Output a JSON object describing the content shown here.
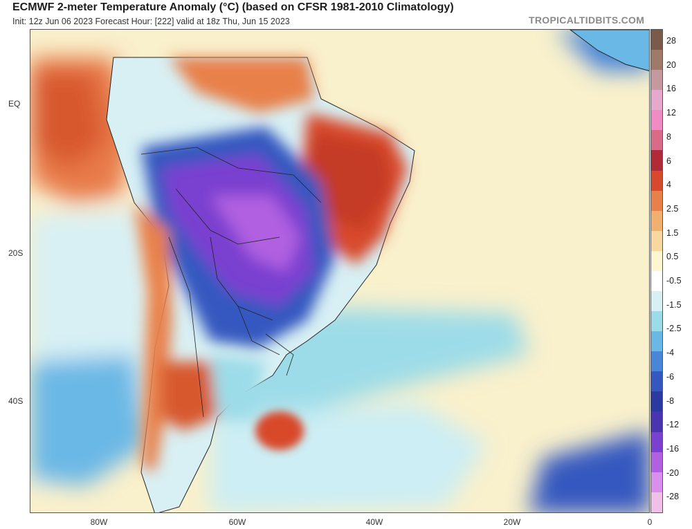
{
  "header": {
    "title": "ECMWF 2-meter Temperature Anomaly (°C) (based on CFSR 1981-2010 Climatology)",
    "subtitle": "Init: 12z Jun 06 2023   Forecast Hour: [222]   valid at 18z Thu, Jun 15 2023",
    "watermark": "TROPICALTIDBITS.COM"
  },
  "map": {
    "lat_labels": [
      "EQ",
      "20S",
      "40S"
    ],
    "lon_labels": [
      "80W",
      "60W",
      "40W",
      "20W",
      "0"
    ]
  },
  "colorbar": {
    "labels": [
      "28",
      "20",
      "16",
      "12",
      "8",
      "6",
      "4",
      "2.5",
      "1.5",
      "0.5",
      "-0.5",
      "-1.5",
      "-2.5",
      "-4",
      "-6",
      "-8",
      "-12",
      "-16",
      "-20",
      "-28"
    ],
    "colors": [
      "#7a5a48",
      "#a07a68",
      "#c49aa0",
      "#e6a8cc",
      "#f08cc4",
      "#d86a8a",
      "#b02a38",
      "#d8482c",
      "#e8804a",
      "#f0b070",
      "#f6d8a0",
      "#fdf6d0",
      "#ffffff",
      "#d8f0f4",
      "#9cdce8",
      "#6ab8e6",
      "#4a86d8",
      "#3458c0",
      "#2a3aa0",
      "#4a34b0",
      "#7a40d0",
      "#b060e0",
      "#d890ec",
      "#f0c0e8"
    ]
  }
}
